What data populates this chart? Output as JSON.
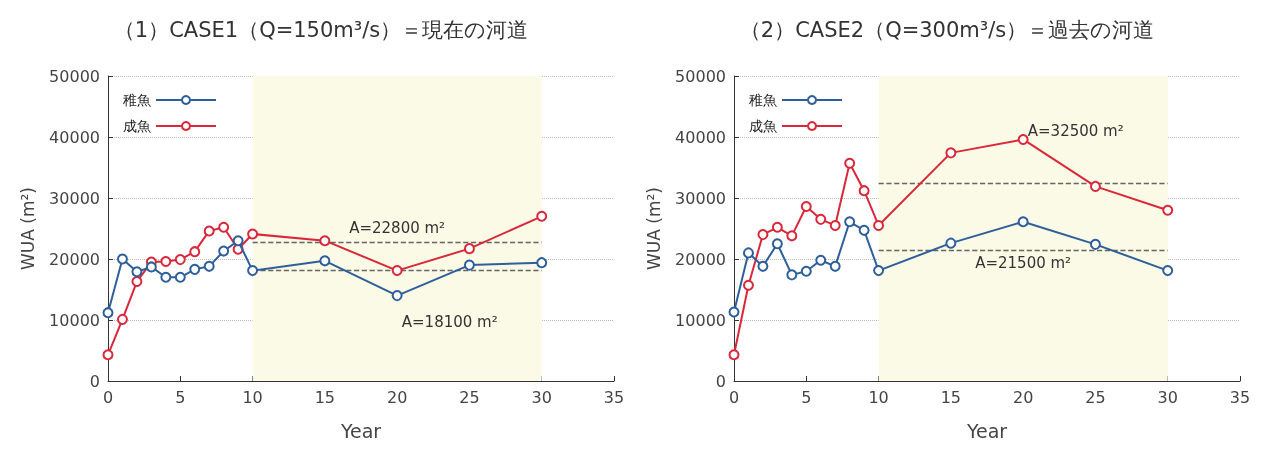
{
  "chart_data": [
    {
      "type": "line",
      "title": "（1）CASE1（Q=150m³/s）＝現在の河道",
      "xlabel": "Year",
      "ylabel": "WUA (m²)",
      "xlim": [
        0,
        35
      ],
      "xticks": [
        0,
        5,
        10,
        15,
        20,
        25,
        30,
        35
      ],
      "ylim": [
        0,
        50000
      ],
      "yticks": [
        0,
        10000,
        20000,
        30000,
        40000,
        50000
      ],
      "grid": "y",
      "legend": "top left",
      "marker": "circle",
      "series": [
        {
          "name": "稚魚",
          "color": "#2e5f9a",
          "x": [
            0,
            1,
            2,
            3,
            4,
            5,
            6,
            7,
            8,
            9,
            10,
            15,
            20,
            25,
            30
          ],
          "values": [
            11200,
            20000,
            17900,
            18700,
            17000,
            17000,
            18300,
            18800,
            21300,
            23000,
            18100,
            19700,
            14000,
            19000,
            19400
          ]
        },
        {
          "name": "成魚",
          "color": "#d9283a",
          "x": [
            0,
            1,
            2,
            3,
            4,
            5,
            6,
            7,
            8,
            9,
            10,
            15,
            20,
            25,
            30
          ],
          "values": [
            4300,
            10100,
            16300,
            19500,
            19600,
            19900,
            21200,
            24600,
            25200,
            21600,
            24100,
            23000,
            18100,
            21700,
            27000
          ]
        }
      ],
      "bands": [
        {
          "axis": "x",
          "from": 10,
          "to": 30,
          "color": "#fafae6"
        }
      ],
      "ref_lines": [
        {
          "axis": "y",
          "value": 22800,
          "label": "A=22800 m²",
          "line_style": "dashed",
          "color": "#666666"
        },
        {
          "axis": "y",
          "value": 18100,
          "label": "A=18100 m²",
          "line_style": "dashed",
          "color": "#666666"
        }
      ]
    },
    {
      "type": "line",
      "title": "（2）CASE2（Q=300m³/s）＝過去の河道",
      "xlabel": "Year",
      "ylabel": "WUA (m²)",
      "xlim": [
        0,
        35
      ],
      "xticks": [
        0,
        5,
        10,
        15,
        20,
        25,
        30,
        35
      ],
      "ylim": [
        0,
        50000
      ],
      "yticks": [
        0,
        10000,
        20000,
        30000,
        40000,
        50000
      ],
      "grid": "y",
      "legend": "top left",
      "marker": "circle",
      "series": [
        {
          "name": "稚魚",
          "color": "#2e5f9a",
          "x": [
            0,
            1,
            2,
            3,
            4,
            5,
            6,
            7,
            8,
            9,
            10,
            15,
            20,
            25,
            30
          ],
          "values": [
            11300,
            21000,
            18800,
            22500,
            17400,
            18000,
            19800,
            18800,
            26100,
            24700,
            18100,
            22600,
            26100,
            22400,
            18100
          ]
        },
        {
          "name": "成魚",
          "color": "#d9283a",
          "x": [
            0,
            1,
            2,
            3,
            4,
            5,
            6,
            7,
            8,
            9,
            10,
            15,
            20,
            25,
            30
          ],
          "values": [
            4300,
            15700,
            24000,
            25200,
            23800,
            28600,
            26500,
            25500,
            35700,
            31200,
            25500,
            37400,
            39600,
            31900,
            28000
          ]
        }
      ],
      "bands": [
        {
          "axis": "x",
          "from": 10,
          "to": 30,
          "color": "#fafae6"
        }
      ],
      "ref_lines": [
        {
          "axis": "y",
          "value": 32500,
          "label": "A=32500 m²",
          "line_style": "dashed",
          "color": "#666666"
        },
        {
          "axis": "y",
          "value": 21500,
          "label": "A=21500 m²",
          "line_style": "dashed",
          "color": "#666666"
        }
      ]
    }
  ]
}
